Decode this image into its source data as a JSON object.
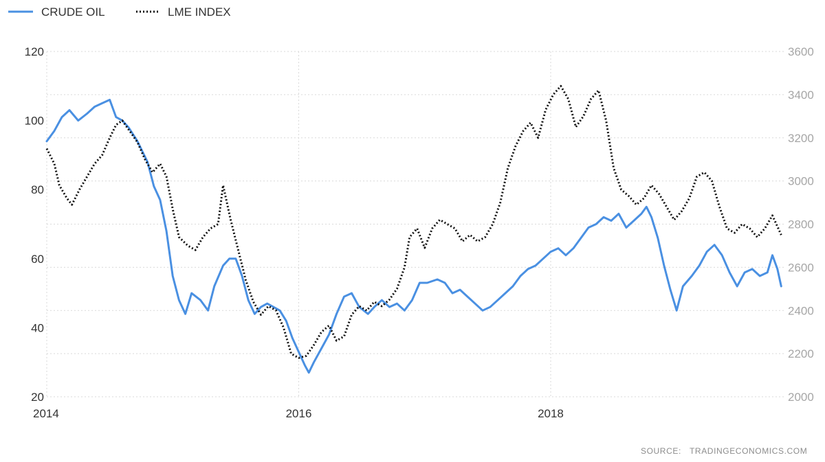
{
  "chart_data": {
    "type": "line",
    "title": "",
    "source_label": "SOURCE:",
    "source_value": "TRADINGECONOMICS.COM",
    "x_range": [
      2014.0,
      2019.85
    ],
    "x_ticks": [
      {
        "value": 2014,
        "label": "2014"
      },
      {
        "value": 2016,
        "label": "2016"
      },
      {
        "value": 2018,
        "label": "2018"
      }
    ],
    "y_left": {
      "range": [
        20,
        120
      ],
      "ticks": [
        20,
        40,
        60,
        80,
        100,
        120
      ]
    },
    "y_right": {
      "range": [
        2000,
        3600
      ],
      "ticks": [
        2000,
        2200,
        2400,
        2600,
        2800,
        3000,
        3200,
        3400,
        3600
      ]
    },
    "grid": true,
    "legend_position": "top-left",
    "colors": {
      "crude_oil": "#4a90e2",
      "lme_index": "#111111",
      "grid": "#d9d9d9"
    },
    "series": [
      {
        "name": "CRUDE OIL",
        "axis": "left",
        "style": "solid",
        "points": [
          [
            2014.0,
            94
          ],
          [
            2014.06,
            97
          ],
          [
            2014.12,
            101
          ],
          [
            2014.18,
            103
          ],
          [
            2014.25,
            100
          ],
          [
            2014.32,
            102
          ],
          [
            2014.38,
            104
          ],
          [
            2014.44,
            105
          ],
          [
            2014.5,
            106
          ],
          [
            2014.55,
            101
          ],
          [
            2014.6,
            100
          ],
          [
            2014.65,
            98
          ],
          [
            2014.72,
            94
          ],
          [
            2014.8,
            88
          ],
          [
            2014.85,
            81
          ],
          [
            2014.9,
            77
          ],
          [
            2014.95,
            68
          ],
          [
            2015.0,
            55
          ],
          [
            2015.05,
            48
          ],
          [
            2015.1,
            44
          ],
          [
            2015.15,
            50
          ],
          [
            2015.22,
            48
          ],
          [
            2015.28,
            45
          ],
          [
            2015.33,
            52
          ],
          [
            2015.4,
            58
          ],
          [
            2015.45,
            60
          ],
          [
            2015.5,
            60
          ],
          [
            2015.55,
            55
          ],
          [
            2015.6,
            48
          ],
          [
            2015.65,
            44
          ],
          [
            2015.7,
            46
          ],
          [
            2015.75,
            47
          ],
          [
            2015.8,
            46
          ],
          [
            2015.85,
            45
          ],
          [
            2015.9,
            42
          ],
          [
            2015.95,
            37
          ],
          [
            2016.0,
            33
          ],
          [
            2016.05,
            29
          ],
          [
            2016.08,
            27
          ],
          [
            2016.12,
            30
          ],
          [
            2016.18,
            34
          ],
          [
            2016.24,
            38
          ],
          [
            2016.3,
            44
          ],
          [
            2016.36,
            49
          ],
          [
            2016.42,
            50
          ],
          [
            2016.48,
            46
          ],
          [
            2016.55,
            44
          ],
          [
            2016.6,
            46
          ],
          [
            2016.66,
            48
          ],
          [
            2016.72,
            46
          ],
          [
            2016.78,
            47
          ],
          [
            2016.84,
            45
          ],
          [
            2016.9,
            48
          ],
          [
            2016.96,
            53
          ],
          [
            2017.02,
            53
          ],
          [
            2017.1,
            54
          ],
          [
            2017.16,
            53
          ],
          [
            2017.22,
            50
          ],
          [
            2017.28,
            51
          ],
          [
            2017.34,
            49
          ],
          [
            2017.4,
            47
          ],
          [
            2017.46,
            45
          ],
          [
            2017.52,
            46
          ],
          [
            2017.58,
            48
          ],
          [
            2017.64,
            50
          ],
          [
            2017.7,
            52
          ],
          [
            2017.76,
            55
          ],
          [
            2017.82,
            57
          ],
          [
            2017.88,
            58
          ],
          [
            2017.94,
            60
          ],
          [
            2018.0,
            62
          ],
          [
            2018.06,
            63
          ],
          [
            2018.12,
            61
          ],
          [
            2018.18,
            63
          ],
          [
            2018.24,
            66
          ],
          [
            2018.3,
            69
          ],
          [
            2018.36,
            70
          ],
          [
            2018.42,
            72
          ],
          [
            2018.48,
            71
          ],
          [
            2018.54,
            73
          ],
          [
            2018.6,
            69
          ],
          [
            2018.66,
            71
          ],
          [
            2018.72,
            73
          ],
          [
            2018.76,
            75
          ],
          [
            2018.8,
            72
          ],
          [
            2018.85,
            66
          ],
          [
            2018.9,
            58
          ],
          [
            2018.95,
            51
          ],
          [
            2019.0,
            45
          ],
          [
            2019.05,
            52
          ],
          [
            2019.12,
            55
          ],
          [
            2019.18,
            58
          ],
          [
            2019.24,
            62
          ],
          [
            2019.3,
            64
          ],
          [
            2019.36,
            61
          ],
          [
            2019.42,
            56
          ],
          [
            2019.48,
            52
          ],
          [
            2019.54,
            56
          ],
          [
            2019.6,
            57
          ],
          [
            2019.66,
            55
          ],
          [
            2019.72,
            56
          ],
          [
            2019.76,
            61
          ],
          [
            2019.8,
            57
          ],
          [
            2019.83,
            52
          ]
        ]
      },
      {
        "name": "LME INDEX",
        "axis": "right",
        "style": "dotted",
        "points": [
          [
            2014.0,
            3150
          ],
          [
            2014.06,
            3080
          ],
          [
            2014.1,
            2980
          ],
          [
            2014.16,
            2920
          ],
          [
            2014.2,
            2890
          ],
          [
            2014.26,
            2960
          ],
          [
            2014.32,
            3020
          ],
          [
            2014.38,
            3080
          ],
          [
            2014.44,
            3120
          ],
          [
            2014.5,
            3200
          ],
          [
            2014.55,
            3260
          ],
          [
            2014.6,
            3280
          ],
          [
            2014.66,
            3230
          ],
          [
            2014.72,
            3180
          ],
          [
            2014.78,
            3100
          ],
          [
            2014.84,
            3040
          ],
          [
            2014.9,
            3080
          ],
          [
            2014.95,
            3020
          ],
          [
            2015.0,
            2870
          ],
          [
            2015.05,
            2740
          ],
          [
            2015.12,
            2700
          ],
          [
            2015.18,
            2680
          ],
          [
            2015.24,
            2740
          ],
          [
            2015.3,
            2780
          ],
          [
            2015.36,
            2800
          ],
          [
            2015.4,
            2980
          ],
          [
            2015.46,
            2820
          ],
          [
            2015.52,
            2680
          ],
          [
            2015.58,
            2540
          ],
          [
            2015.64,
            2440
          ],
          [
            2015.7,
            2380
          ],
          [
            2015.76,
            2420
          ],
          [
            2015.82,
            2400
          ],
          [
            2015.88,
            2320
          ],
          [
            2015.94,
            2200
          ],
          [
            2016.0,
            2180
          ],
          [
            2016.06,
            2190
          ],
          [
            2016.12,
            2240
          ],
          [
            2016.18,
            2300
          ],
          [
            2016.24,
            2330
          ],
          [
            2016.3,
            2260
          ],
          [
            2016.36,
            2280
          ],
          [
            2016.42,
            2380
          ],
          [
            2016.48,
            2420
          ],
          [
            2016.54,
            2400
          ],
          [
            2016.6,
            2440
          ],
          [
            2016.66,
            2420
          ],
          [
            2016.72,
            2450
          ],
          [
            2016.78,
            2500
          ],
          [
            2016.84,
            2600
          ],
          [
            2016.88,
            2740
          ],
          [
            2016.94,
            2780
          ],
          [
            2017.0,
            2690
          ],
          [
            2017.06,
            2780
          ],
          [
            2017.12,
            2820
          ],
          [
            2017.18,
            2800
          ],
          [
            2017.24,
            2780
          ],
          [
            2017.3,
            2720
          ],
          [
            2017.36,
            2750
          ],
          [
            2017.42,
            2720
          ],
          [
            2017.48,
            2740
          ],
          [
            2017.54,
            2800
          ],
          [
            2017.6,
            2900
          ],
          [
            2017.66,
            3060
          ],
          [
            2017.72,
            3160
          ],
          [
            2017.78,
            3230
          ],
          [
            2017.84,
            3270
          ],
          [
            2017.9,
            3200
          ],
          [
            2017.96,
            3330
          ],
          [
            2018.02,
            3400
          ],
          [
            2018.08,
            3440
          ],
          [
            2018.14,
            3380
          ],
          [
            2018.2,
            3250
          ],
          [
            2018.26,
            3300
          ],
          [
            2018.32,
            3380
          ],
          [
            2018.38,
            3420
          ],
          [
            2018.44,
            3280
          ],
          [
            2018.5,
            3060
          ],
          [
            2018.56,
            2960
          ],
          [
            2018.62,
            2930
          ],
          [
            2018.68,
            2890
          ],
          [
            2018.74,
            2920
          ],
          [
            2018.8,
            2980
          ],
          [
            2018.86,
            2940
          ],
          [
            2018.92,
            2880
          ],
          [
            2018.98,
            2820
          ],
          [
            2019.04,
            2860
          ],
          [
            2019.1,
            2920
          ],
          [
            2019.16,
            3020
          ],
          [
            2019.22,
            3040
          ],
          [
            2019.28,
            3000
          ],
          [
            2019.34,
            2880
          ],
          [
            2019.4,
            2780
          ],
          [
            2019.46,
            2760
          ],
          [
            2019.52,
            2800
          ],
          [
            2019.58,
            2780
          ],
          [
            2019.64,
            2740
          ],
          [
            2019.7,
            2780
          ],
          [
            2019.76,
            2840
          ],
          [
            2019.83,
            2750
          ]
        ]
      }
    ]
  }
}
